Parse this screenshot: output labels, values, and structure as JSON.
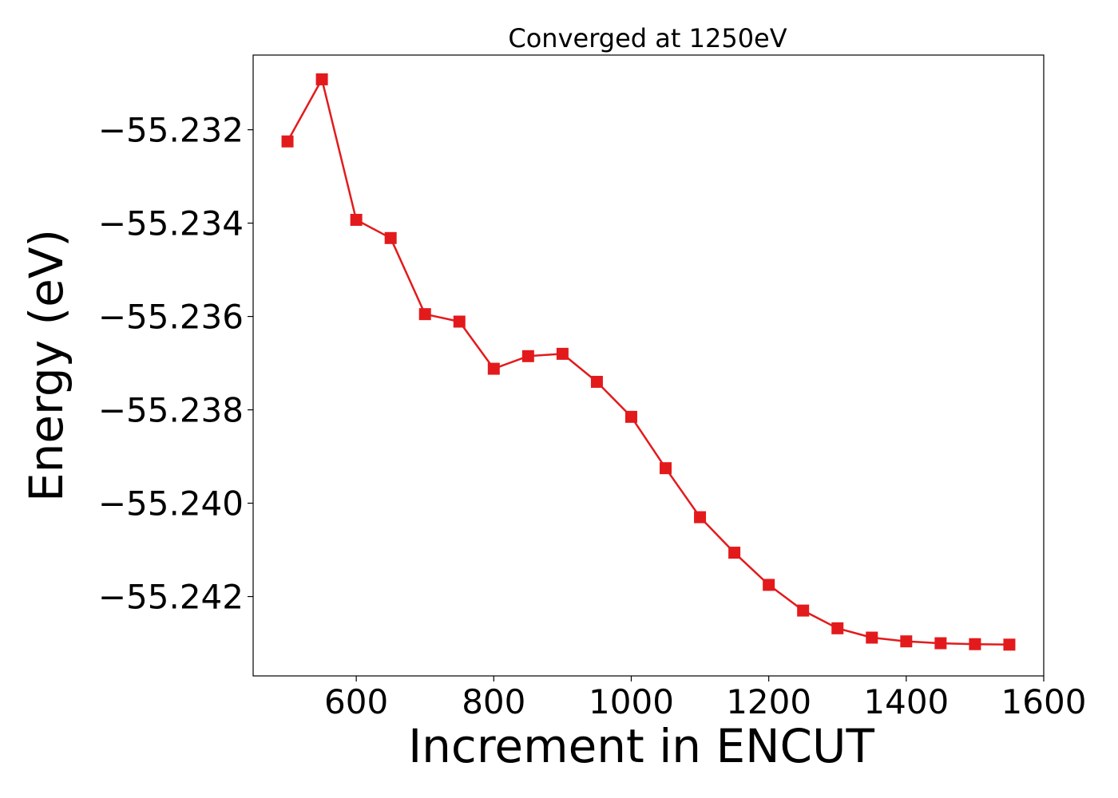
{
  "chart_data": {
    "type": "line",
    "title": "Converged at 1250eV",
    "xlabel": "Increment in ENCUT",
    "ylabel": "Energy (eV)",
    "xlim": [
      450,
      1600
    ],
    "ylim": [
      -55.2437,
      -55.2304
    ],
    "xticks": [
      600,
      800,
      1000,
      1200,
      1400,
      1600
    ],
    "yticks": [
      -55.232,
      -55.234,
      -55.236,
      -55.238,
      -55.24,
      -55.242
    ],
    "ytick_labels": [
      "−55.232",
      "−55.234",
      "−55.236",
      "−55.238",
      "−55.240",
      "−55.242"
    ],
    "grid": false,
    "series": [
      {
        "color": "#e31a1c",
        "marker": "square",
        "x": [
          500,
          550,
          600,
          650,
          700,
          750,
          800,
          850,
          900,
          950,
          1000,
          1050,
          1100,
          1150,
          1200,
          1250,
          1300,
          1350,
          1400,
          1450,
          1500,
          1550
        ],
        "y": [
          -55.23225,
          -55.23092,
          -55.23393,
          -55.23432,
          -55.23595,
          -55.23611,
          -55.23712,
          -55.23685,
          -55.2368,
          -55.2374,
          -55.23815,
          -55.23925,
          -55.2403,
          -55.24106,
          -55.24175,
          -55.2423,
          -55.24268,
          -55.24288,
          -55.24296,
          -55.243,
          -55.24302,
          -55.24303
        ]
      }
    ]
  }
}
